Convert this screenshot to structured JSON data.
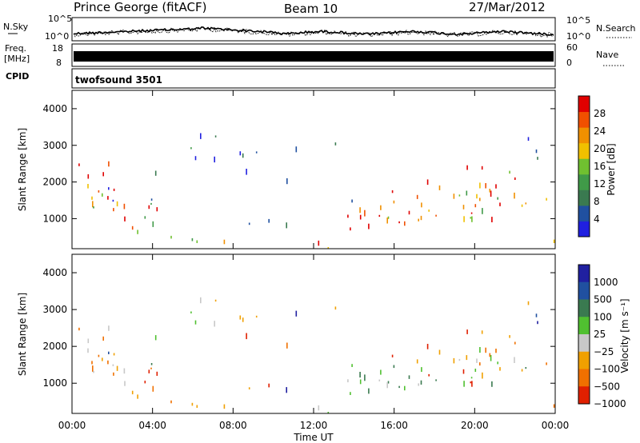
{
  "header": {
    "station": "Prince George (fitACF)",
    "beam": "Beam 10",
    "date": "27/Mar/2012"
  },
  "top_panels": {
    "nsky_label": "N.Sky",
    "nsearch_label": "N.Search",
    "noise_ticks_left": [
      "10^5",
      "10^0"
    ],
    "noise_ticks_right": [
      "10^5",
      "10^0"
    ],
    "freq_label_line1": "Freq.",
    "freq_label_line2": "[MHz]",
    "freq_ticks": [
      "18",
      "8"
    ],
    "nave_label": "Nave",
    "nave_ticks": [
      "60",
      "0"
    ],
    "cpid_label": "CPID",
    "cpid_value": "twofsound 3501"
  },
  "colors": {
    "power_scale": [
      "#2020e0",
      "#2050a0",
      "#3a7a50",
      "#409a48",
      "#70c030",
      "#f0c000",
      "#f09000",
      "#f05000",
      "#e00000"
    ],
    "velocity_scale": [
      "#2020a0",
      "#2050a0",
      "#3a7a50",
      "#50c030",
      "#c8c8c8",
      "#f0a000",
      "#f07000",
      "#e02000"
    ]
  },
  "chart_data": [
    {
      "type": "heatmap",
      "title": "Power",
      "ylabel": "Slant Range [km]",
      "xlabel": "Time UT",
      "ylim": [
        180,
        4500
      ],
      "xlim": [
        0,
        24
      ],
      "yticks": [
        "1000",
        "2000",
        "3000",
        "4000"
      ],
      "xticks": [
        "00:00",
        "04:00",
        "08:00",
        "12:00",
        "16:00",
        "20:00",
        "00:00"
      ],
      "colorbar": {
        "label": "Power [dB]",
        "ticks": [
          "4",
          "8",
          "12",
          "16",
          "20",
          "24",
          "28"
        ]
      }
    },
    {
      "type": "heatmap",
      "title": "Velocity",
      "ylabel": "Slant Range [km]",
      "xlabel": "Time UT",
      "ylim": [
        180,
        4500
      ],
      "xlim": [
        0,
        24
      ],
      "yticks": [
        "1000",
        "2000",
        "3000",
        "4000"
      ],
      "xticks": [
        "00:00",
        "04:00",
        "08:00",
        "12:00",
        "16:00",
        "20:00",
        "00:00"
      ],
      "colorbar": {
        "label": "Velocity [m s⁻¹]",
        "ticks": [
          "1000",
          "500",
          "100",
          "25",
          "−25",
          "−100",
          "−500",
          "−1000"
        ]
      }
    }
  ]
}
